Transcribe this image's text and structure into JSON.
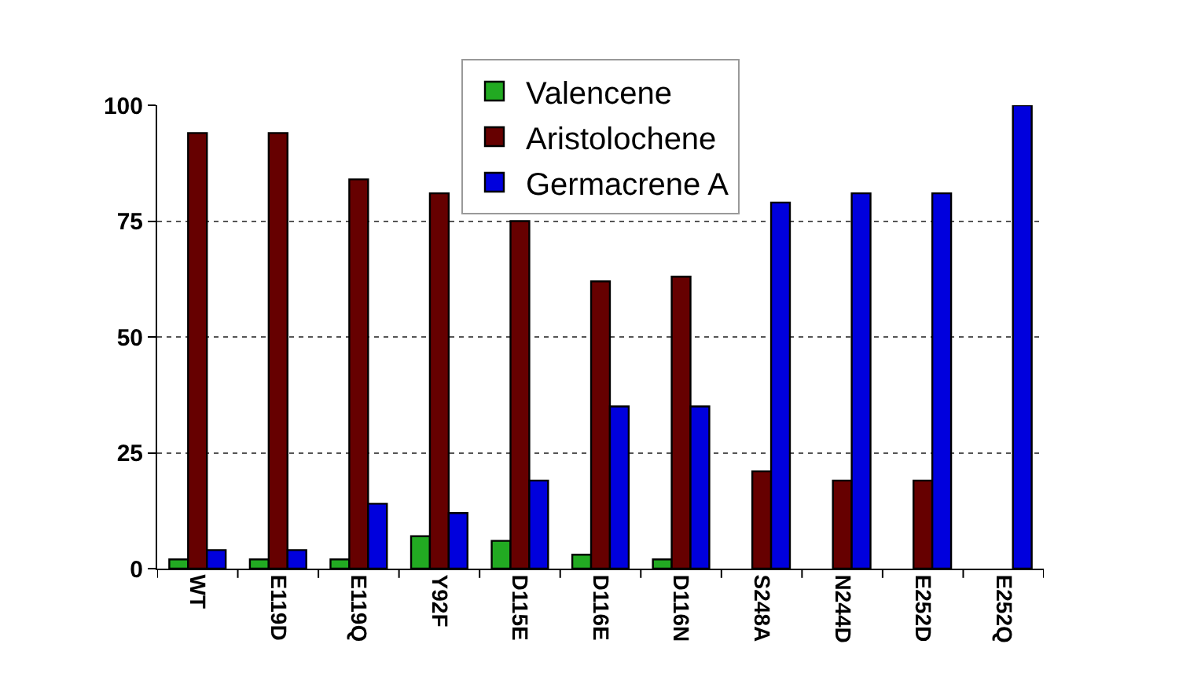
{
  "chart_data": {
    "type": "bar",
    "categories": [
      "WT",
      "E119D",
      "E119Q",
      "Y92F",
      "D115E",
      "D116E",
      "D116N",
      "S248A",
      "N244D",
      "E252D",
      "E252Q"
    ],
    "series": [
      {
        "name": "Valencene",
        "color": "#22aa22",
        "values": [
          2,
          2,
          2,
          7,
          6,
          3,
          2,
          null,
          null,
          null,
          null
        ]
      },
      {
        "name": "Aristolochene",
        "color": "#660000",
        "values": [
          94,
          94,
          84,
          81,
          75,
          62,
          63,
          21,
          19,
          19,
          null
        ]
      },
      {
        "name": "Germacrene A",
        "color": "#0000dd",
        "values": [
          4,
          4,
          14,
          12,
          19,
          35,
          35,
          79,
          81,
          81,
          100
        ]
      }
    ],
    "ylim": [
      0,
      100
    ],
    "yticks": [
      0,
      25,
      50,
      75,
      100
    ],
    "grid": "y",
    "legend": "top"
  }
}
